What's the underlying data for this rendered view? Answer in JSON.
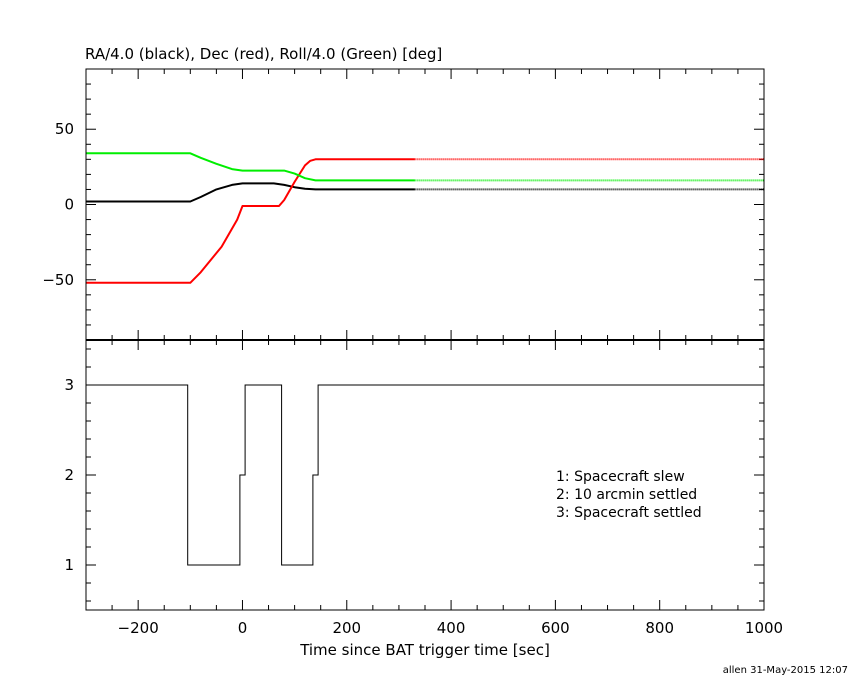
{
  "chart_data": [
    {
      "type": "line",
      "title": "RA/4.0 (black), Dec (red), Roll/4.0 (Green) [deg]",
      "xlabel": "",
      "ylabel": "",
      "xlim": [
        -300,
        1000
      ],
      "ylim": [
        -90,
        90
      ],
      "yticks": [
        -50,
        0,
        50
      ],
      "grid": false,
      "series": [
        {
          "color": "#000000",
          "points": [
            [
              -300,
              2
            ],
            [
              -100,
              2
            ],
            [
              -80,
              5
            ],
            [
              -50,
              10
            ],
            [
              -20,
              13
            ],
            [
              0,
              14
            ],
            [
              60,
              14
            ],
            [
              80,
              13
            ],
            [
              100,
              11.5
            ],
            [
              120,
              10.5
            ],
            [
              140,
              10
            ],
            [
              330,
              10
            ],
            [
              1000,
              10
            ]
          ],
          "solid_until": 330
        },
        {
          "color": "#ff0000",
          "points": [
            [
              -300,
              -52
            ],
            [
              -100,
              -52
            ],
            [
              -80,
              -45
            ],
            [
              -40,
              -28
            ],
            [
              -10,
              -10
            ],
            [
              0,
              -1
            ],
            [
              70,
              -1
            ],
            [
              80,
              3
            ],
            [
              100,
              15
            ],
            [
              120,
              26
            ],
            [
              130,
              29
            ],
            [
              140,
              30
            ],
            [
              330,
              30
            ],
            [
              1000,
              30
            ]
          ],
          "solid_until": 330
        },
        {
          "color": "#00ee00",
          "points": [
            [
              -300,
              34
            ],
            [
              -100,
              34
            ],
            [
              -80,
              31
            ],
            [
              -50,
              27
            ],
            [
              -20,
              23.5
            ],
            [
              0,
              22.5
            ],
            [
              80,
              22.5
            ],
            [
              100,
              20.5
            ],
            [
              120,
              17.5
            ],
            [
              140,
              16
            ],
            [
              330,
              16
            ],
            [
              1000,
              16
            ]
          ],
          "solid_until": 330
        }
      ]
    },
    {
      "type": "line",
      "title": "",
      "xlabel": "Time since BAT trigger time [sec]",
      "ylabel": "",
      "xlim": [
        -300,
        1000
      ],
      "ylim": [
        0.5,
        3.5
      ],
      "xticks": [
        -200,
        0,
        200,
        400,
        600,
        800,
        1000
      ],
      "yticks": [
        1,
        2,
        3
      ],
      "grid": false,
      "legend": {
        "position": "center-right",
        "entries": [
          "1: Spacecraft slew",
          "2: 10 arcmin settled",
          "3: Spacecraft settled"
        ]
      },
      "series": [
        {
          "color": "#000000",
          "step": true,
          "points": [
            [
              -300,
              3
            ],
            [
              -105,
              3
            ],
            [
              -105,
              1
            ],
            [
              -5,
              1
            ],
            [
              -5,
              2
            ],
            [
              5,
              2
            ],
            [
              5,
              3
            ],
            [
              75,
              3
            ],
            [
              75,
              1
            ],
            [
              135,
              1
            ],
            [
              135,
              2
            ],
            [
              145,
              2
            ],
            [
              145,
              3
            ],
            [
              1000,
              3
            ]
          ]
        }
      ]
    }
  ],
  "credit": "allen 31-May-2015 12:07"
}
